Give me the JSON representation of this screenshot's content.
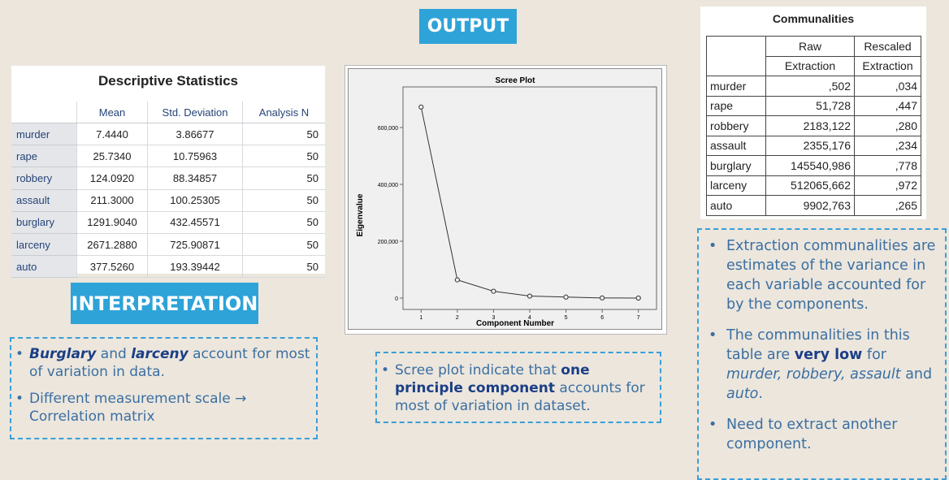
{
  "output_banner": "OUTPUT",
  "interpretation_banner": "INTERPRETATION",
  "descriptive": {
    "title": "Descriptive Statistics",
    "columns": [
      "",
      "Mean",
      "Std. Deviation",
      "Analysis N"
    ],
    "rows": [
      [
        "murder",
        "7.4440",
        "3.86677",
        "50"
      ],
      [
        "rape",
        "25.7340",
        "10.75963",
        "50"
      ],
      [
        "robbery",
        "124.0920",
        "88.34857",
        "50"
      ],
      [
        "assault",
        "211.3000",
        "100.25305",
        "50"
      ],
      [
        "burglary",
        "1291.9040",
        "432.45571",
        "50"
      ],
      [
        "larceny",
        "2671.2880",
        "725.90871",
        "50"
      ],
      [
        "auto",
        "377.5260",
        "193.39442",
        "50"
      ]
    ]
  },
  "communalities": {
    "title": "Communalities",
    "group_headers": [
      "Raw",
      "Rescaled"
    ],
    "sub_headers": [
      "Extraction",
      "Extraction"
    ],
    "rows": [
      [
        "murder",
        ",502",
        ",034"
      ],
      [
        "rape",
        "51,728",
        ",447"
      ],
      [
        "robbery",
        "2183,122",
        ",280"
      ],
      [
        "assault",
        "2355,176",
        ",234"
      ],
      [
        "burglary",
        "145540,986",
        ",778"
      ],
      [
        "larceny",
        "512065,662",
        ",972"
      ],
      [
        "auto",
        "9902,763",
        ",265"
      ]
    ]
  },
  "chart_data": {
    "type": "line",
    "title": "Scree Plot",
    "xlabel": "Component Number",
    "ylabel": "Eigenvalue",
    "x": [
      1,
      2,
      3,
      4,
      5,
      6,
      7
    ],
    "y": [
      672000,
      64000,
      24000,
      7000,
      3500,
      500,
      0
    ],
    "xlim": [
      0.5,
      7.5
    ],
    "ylim": [
      0,
      720000
    ],
    "yticks": [
      0,
      200000,
      400000,
      600000
    ],
    "ytick_labels": [
      "0",
      "200,000",
      "400,000",
      "600,000"
    ],
    "xtick_labels": [
      "1",
      "2",
      "3",
      "4",
      "5",
      "6",
      "7"
    ],
    "grid": false,
    "marker": "open-circle"
  },
  "notes": {
    "left": {
      "item1_a": "Burglary",
      "item1_b": " and ",
      "item1_c": "larceny",
      "item1_d": " account for most of variation in data.",
      "item2": "Different measurement scale → Correlation matrix"
    },
    "middle": {
      "a": "Scree plot indicate that ",
      "b": "one principle component",
      "c": " accounts for most of variation in dataset."
    },
    "right": {
      "item1": "Extraction communalities are estimates of the variance in each variable accounted for by the components.",
      "item2_a": "The communalities in this table are ",
      "item2_b": "very low",
      "item2_c": " for ",
      "item2_d": "murder, robbery, assault",
      "item2_e": " and ",
      "item2_f": "auto",
      "item2_g": ".",
      "item3": "Need to extract another component."
    }
  }
}
